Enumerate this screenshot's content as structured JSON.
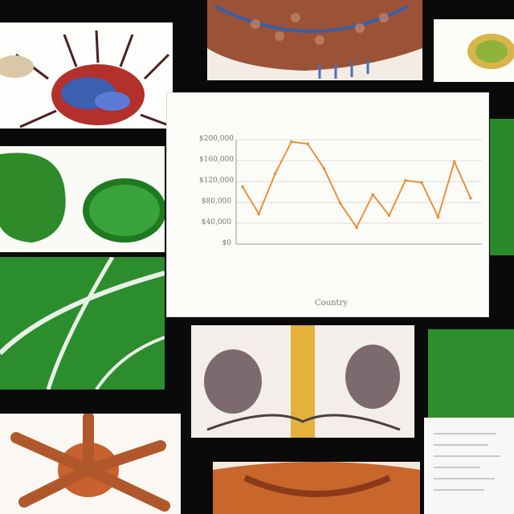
{
  "chart_data": {
    "type": "line",
    "title": "",
    "xlabel": "Country",
    "ylabel": "",
    "y_ticks": [
      "$0",
      "$40,000",
      "$80,000",
      "$120,000",
      "$160,000",
      "$200,000"
    ],
    "ylim": [
      0,
      200000
    ],
    "categories": [
      "",
      "",
      "",
      "",
      "",
      "",
      "",
      "",
      "",
      "",
      "",
      "",
      "",
      "",
      ""
    ],
    "series": [
      {
        "values": [
          110000,
          58000,
          135000,
          196000,
          192000,
          145000,
          78000,
          32000,
          95000,
          55000,
          122000,
          118000,
          52000,
          158000,
          88000
        ]
      }
    ],
    "grid": true,
    "line_color": "#e8923a"
  }
}
